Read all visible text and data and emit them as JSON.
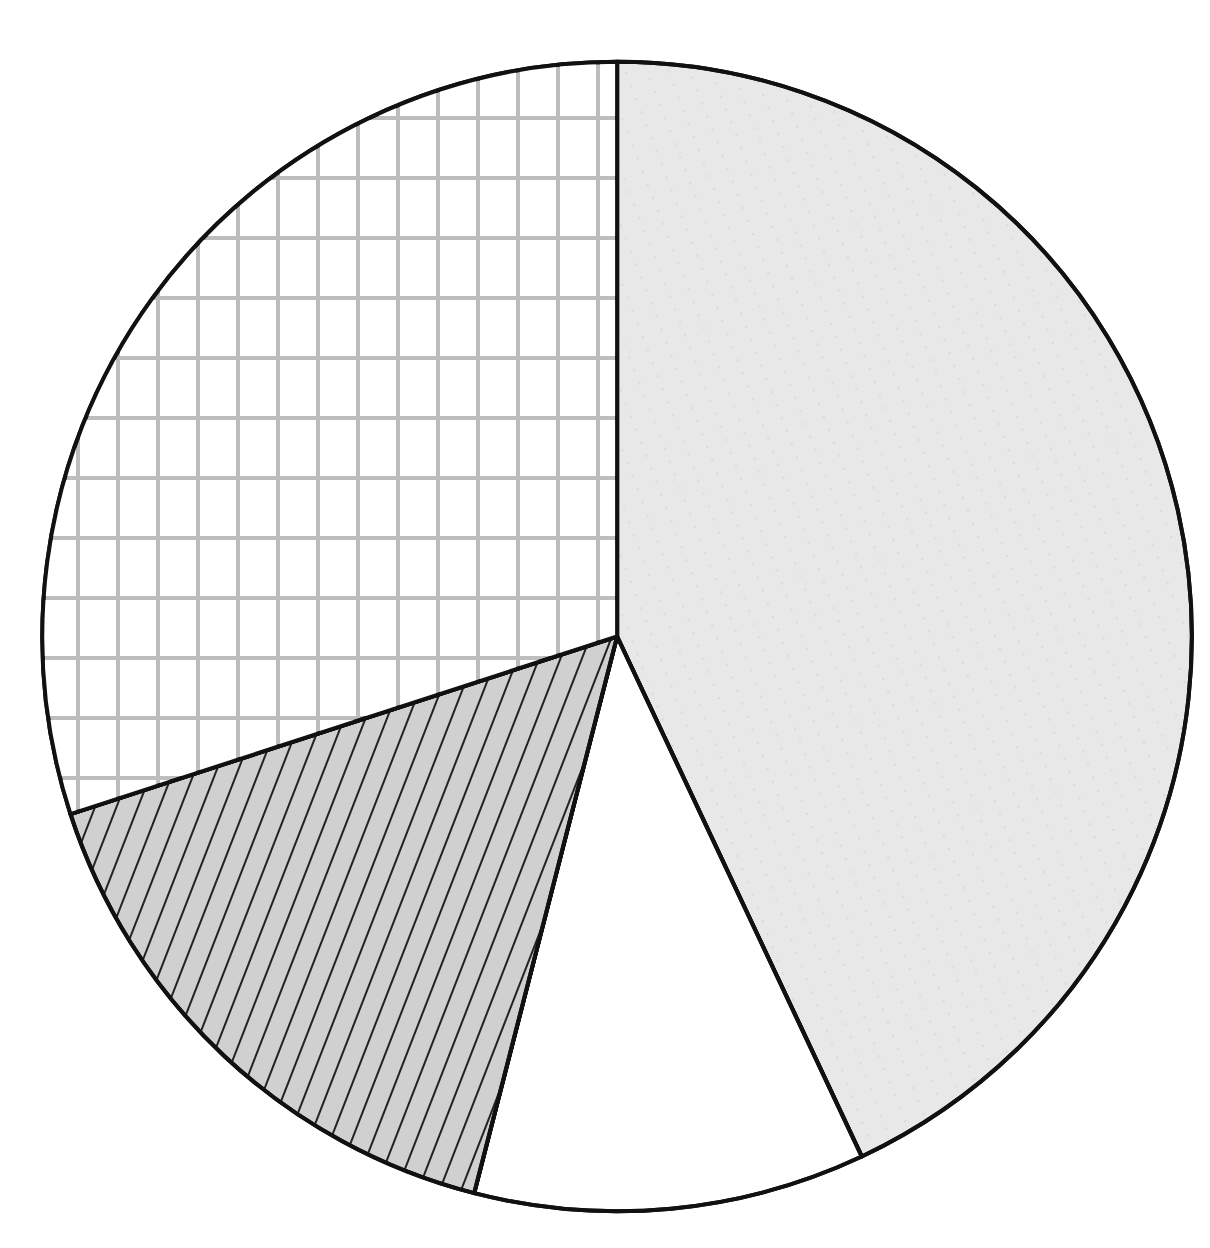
{
  "chart_data": {
    "type": "pie",
    "categories": [
      null,
      null,
      null,
      null
    ],
    "values": [
      43,
      11,
      16,
      30
    ],
    "colors": [
      "#e8e8e8",
      "#ffffff",
      "#d0d0d0",
      "#bdbdbd"
    ]
  }
}
